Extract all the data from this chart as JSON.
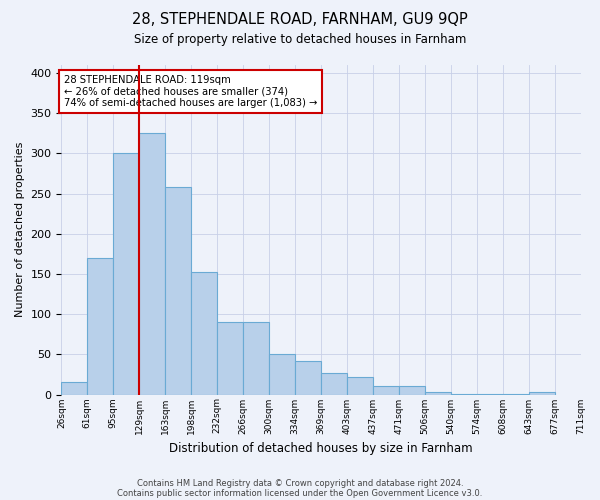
{
  "title": "28, STEPHENDALE ROAD, FARNHAM, GU9 9QP",
  "subtitle": "Size of property relative to detached houses in Farnham",
  "xlabel": "Distribution of detached houses by size in Farnham",
  "ylabel": "Number of detached properties",
  "bar_values": [
    15,
    170,
    300,
    325,
    258,
    153,
    90,
    90,
    50,
    42,
    27,
    22,
    10,
    10,
    3,
    1,
    1,
    1,
    3
  ],
  "bin_labels": [
    "26sqm",
    "61sqm",
    "95sqm",
    "129sqm",
    "163sqm",
    "198sqm",
    "232sqm",
    "266sqm",
    "300sqm",
    "334sqm",
    "369sqm",
    "403sqm",
    "437sqm",
    "471sqm",
    "506sqm",
    "540sqm",
    "574sqm",
    "608sqm",
    "643sqm",
    "677sqm",
    "711sqm"
  ],
  "bar_color": "#b8d0ea",
  "bar_edge_color": "#6aaad4",
  "vline_color": "#cc0000",
  "ylim": [
    0,
    410
  ],
  "yticks": [
    0,
    50,
    100,
    150,
    200,
    250,
    300,
    350,
    400
  ],
  "annotation_title": "28 STEPHENDALE ROAD: 119sqm",
  "annotation_line1": "← 26% of detached houses are smaller (374)",
  "annotation_line2": "74% of semi-detached houses are larger (1,083) →",
  "annotation_box_color": "#ffffff",
  "annotation_box_edge": "#cc0000",
  "footer1": "Contains HM Land Registry data © Crown copyright and database right 2024.",
  "footer2": "Contains public sector information licensed under the Open Government Licence v3.0.",
  "bg_color": "#eef2fa",
  "grid_color": "#c8d0e8"
}
